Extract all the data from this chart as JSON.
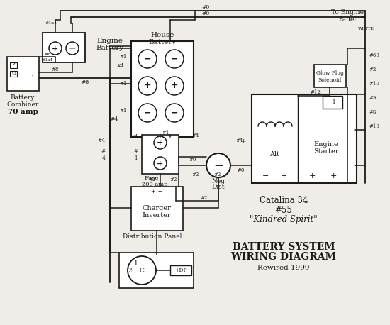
{
  "bg_color": "#f0ede8",
  "lc": "#1a1a1a",
  "boat_info_line1": "Catalina 34",
  "boat_info_line2": "#55",
  "boat_info_line3": "\"Kindred Spirit\"",
  "title_line1": "BATTERY SYSTEM",
  "title_line2": "WIRING DIAGRAM",
  "subtitle": "Rewired 1999"
}
